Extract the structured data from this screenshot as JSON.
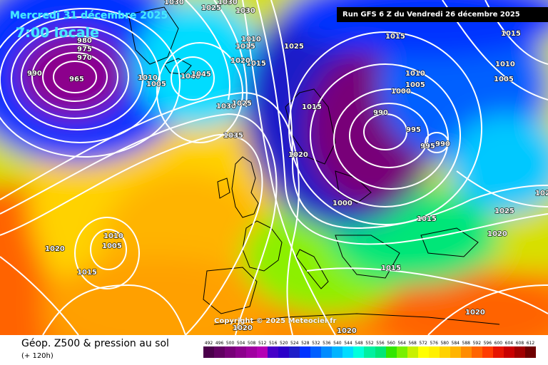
{
  "header": {
    "date": "Mercredi 31 décembre 2025",
    "time": "7:00 locale",
    "run": "Run GFS 6 Z du Vendredi 26 décembre 2025"
  },
  "footer": {
    "title": "Géop. Z500 & pression au sol",
    "subtitle": "(+ 120h)",
    "copyright": "Copyright © 2025 Meteociel.fr"
  },
  "scale": {
    "labels": [
      "492",
      "496",
      "500",
      "504",
      "508",
      "512",
      "516",
      "520",
      "524",
      "528",
      "532",
      "536",
      "540",
      "544",
      "548",
      "552",
      "556",
      "560",
      "564",
      "568",
      "572",
      "576",
      "580",
      "584",
      "588",
      "592",
      "596",
      "600",
      "604",
      "608",
      "612"
    ],
    "colors": [
      "#4b004b",
      "#620062",
      "#780078",
      "#8c008c",
      "#a000a0",
      "#b400b4",
      "#4600c8",
      "#2a00c8",
      "#1e1ec8",
      "#0032ff",
      "#0060ff",
      "#008cff",
      "#00b4ff",
      "#00dcff",
      "#00ffdc",
      "#00f0a0",
      "#00e678",
      "#32e600",
      "#78f000",
      "#c8f000",
      "#ffff00",
      "#fff000",
      "#ffd200",
      "#ffb400",
      "#ff8c00",
      "#ff6400",
      "#ff3c00",
      "#e61400",
      "#c80000",
      "#a00000",
      "#6e0000"
    ]
  },
  "pressure_labels": [
    {
      "text": "1030"
    },
    {
      "text": "1025"
    },
    {
      "text": "1030"
    },
    {
      "text": "980"
    },
    {
      "text": "975"
    },
    {
      "text": "970"
    },
    {
      "text": "965"
    },
    {
      "text": "990"
    },
    {
      "text": "1030"
    },
    {
      "text": "1010"
    },
    {
      "text": "1015"
    },
    {
      "text": "1015"
    },
    {
      "text": "1020"
    },
    {
      "text": "1010"
    },
    {
      "text": "1005"
    },
    {
      "text": "1040"
    },
    {
      "text": "1045"
    },
    {
      "text": "1030"
    },
    {
      "text": "1025"
    },
    {
      "text": "1035"
    },
    {
      "text": "1025"
    },
    {
      "text": "1015"
    },
    {
      "text": "1015"
    },
    {
      "text": "1010"
    },
    {
      "text": "1005"
    },
    {
      "text": "1000"
    },
    {
      "text": "990"
    },
    {
      "text": "995"
    },
    {
      "text": "995"
    },
    {
      "text": "990"
    },
    {
      "text": "1020"
    },
    {
      "text": "1000"
    },
    {
      "text": "1015"
    },
    {
      "text": "1015"
    },
    {
      "text": "1010"
    },
    {
      "text": "1005"
    },
    {
      "text": "1025"
    },
    {
      "text": "1020"
    },
    {
      "text": "1020"
    },
    {
      "text": "1015"
    },
    {
      "text": "1020"
    },
    {
      "text": "1010"
    },
    {
      "text": "1005"
    },
    {
      "text": "1015"
    },
    {
      "text": "1020"
    },
    {
      "text": "1020"
    },
    {
      "text": "1020"
    },
    {
      "text": "102"
    }
  ]
}
